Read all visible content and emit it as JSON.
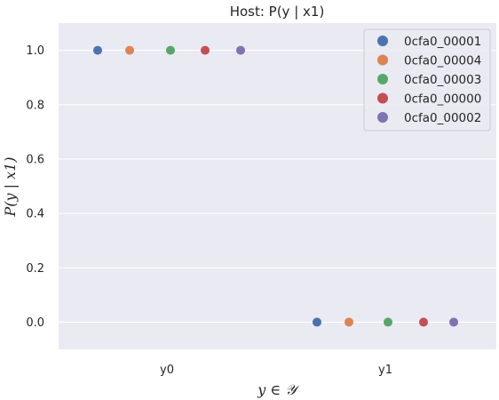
{
  "chart_data": {
    "type": "scatter",
    "title": "Host: P(y | x1)",
    "xlabel": "y ∈ 𝒴",
    "ylabel": "P(y | x1)",
    "categories": [
      "y0",
      "y1"
    ],
    "ylim": [
      -0.1,
      1.1
    ],
    "yticks": [
      "0.0",
      "0.2",
      "0.4",
      "0.6",
      "0.8",
      "1.0"
    ],
    "grid": true,
    "legend_position": "top-right",
    "series": [
      {
        "name": "0cfa0_00001",
        "color": "#4c72b0",
        "values": [
          1.0,
          0.0
        ]
      },
      {
        "name": "0cfa0_00004",
        "color": "#dd8452",
        "values": [
          1.0,
          0.0
        ]
      },
      {
        "name": "0cfa0_00003",
        "color": "#55a868",
        "values": [
          1.0,
          0.0
        ]
      },
      {
        "name": "0cfa0_00000",
        "color": "#c44e52",
        "values": [
          1.0,
          0.0
        ]
      },
      {
        "name": "0cfa0_00002",
        "color": "#8172b3",
        "values": [
          1.0,
          0.0
        ]
      }
    ]
  }
}
